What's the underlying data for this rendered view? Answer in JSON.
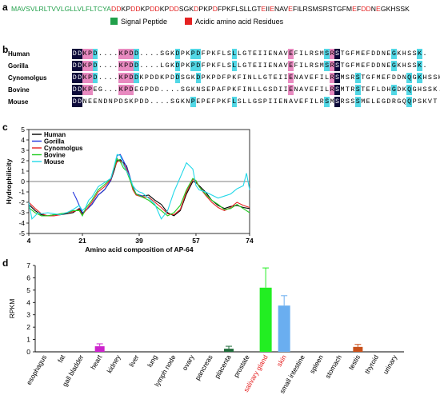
{
  "panels": {
    "a": "a",
    "b": "b",
    "c": "c",
    "d": "d"
  },
  "sequence": {
    "segments": [
      {
        "text": "MAVSVLRLTVVLGLLVLFLTCYA",
        "color": "#21a04a"
      },
      {
        "text": "DD",
        "color": "#e52222"
      },
      {
        "text": "K",
        "color": "#000000"
      },
      {
        "text": "P",
        "color": "#000000"
      },
      {
        "text": "DD",
        "color": "#e52222"
      },
      {
        "text": "KP",
        "color": "#000000"
      },
      {
        "text": "DD",
        "color": "#e52222"
      },
      {
        "text": "KP",
        "color": "#000000"
      },
      {
        "text": "DD",
        "color": "#e52222"
      },
      {
        "text": "SGK",
        "color": "#000000"
      },
      {
        "text": "D",
        "color": "#e52222"
      },
      {
        "text": "PKP",
        "color": "#000000"
      },
      {
        "text": "D",
        "color": "#e52222"
      },
      {
        "text": "FPKFLSLLGT",
        "color": "#000000"
      },
      {
        "text": "E",
        "color": "#e52222"
      },
      {
        "text": "II",
        "color": "#000000"
      },
      {
        "text": "E",
        "color": "#e52222"
      },
      {
        "text": "NAV",
        "color": "#000000"
      },
      {
        "text": "E",
        "color": "#e52222"
      },
      {
        "text": "FILRSMSRSTGFM",
        "color": "#000000"
      },
      {
        "text": "E",
        "color": "#e52222"
      },
      {
        "text": "F",
        "color": "#000000"
      },
      {
        "text": "DD",
        "color": "#e52222"
      },
      {
        "text": "N",
        "color": "#000000"
      },
      {
        "text": "E",
        "color": "#e52222"
      },
      {
        "text": "GKHSSK",
        "color": "#000000"
      }
    ],
    "legend": [
      {
        "label": "Signal Peptide",
        "color": "#21a04a"
      },
      {
        "label": "Acidic amino acid Residues",
        "color": "#e52222"
      }
    ]
  },
  "alignment": [
    {
      "species": "Human",
      "seq": "DDKPD....KPDD....SGKDPKPDFPKFLSLLGTEIIENAVEFILRSMSRSTGFMEFDDNEGKHSSK."
    },
    {
      "species": "Gorilla",
      "seq": "DDKPD....KPDD....LGKDPKPDFPKFLSLLGTEIIENAVEFILRSMSRSTGFMEFDDNEGKHSSK."
    },
    {
      "species": "Cynomolgus",
      "seq": "DDKPD....KPDDKPDDKPDDSGKDPKPDFPKFINLLGTEIIENAVEFILRSMSRSTGFMEFDDNQGKHSSK."
    },
    {
      "species": "Bovine",
      "seq": "DDKPEG...KPDEGPDD....SGKNSEPAFPKFINLLGSDIIENAVEFILRSMTRSTEFLDHGDKQGHSSK."
    },
    {
      "species": "Mouse",
      "seq": "DDNEENDNPDSKPDD....SGKNPEPEFPKFLSLLGSPIIENAVEFILRSMSRSSSMELEGDRGQQPSKVT"
    }
  ],
  "hydro_chart": {
    "type": "line",
    "ylabel": "Hydrophilicity",
    "xlabel": "Amino acid composition of AP-64",
    "xticks": [
      4,
      21,
      39,
      57,
      74
    ],
    "yticks": [
      5,
      4,
      3,
      2,
      1,
      0,
      -1,
      -2,
      -3,
      -4,
      -5
    ],
    "xlim": [
      4,
      74
    ],
    "ylim": [
      -5,
      5
    ],
    "series": [
      {
        "name": "Human",
        "color": "#000000",
        "x": [
          4,
          6,
          8,
          10,
          12,
          14,
          16,
          18,
          20,
          21,
          22,
          24,
          26,
          28,
          30,
          31,
          32,
          33,
          34,
          35,
          36,
          37,
          38,
          40,
          42,
          44,
          46,
          48,
          50,
          52,
          54,
          56,
          57,
          58,
          60,
          62,
          64,
          66,
          68,
          70,
          72,
          74
        ],
        "y": [
          -2.2,
          -2.8,
          -3.2,
          -3.3,
          -3.2,
          -3.2,
          -3.1,
          -3.0,
          -2.6,
          -3.1,
          -2.8,
          -2.2,
          -1.3,
          -0.8,
          0.1,
          1.0,
          2.0,
          2.1,
          1.8,
          1.5,
          0.5,
          -0.6,
          -1.2,
          -1.4,
          -1.3,
          -1.8,
          -2.2,
          -3.0,
          -3.3,
          -2.8,
          -1.2,
          0.0,
          -0.1,
          -0.4,
          -1.0,
          -1.8,
          -2.3,
          -2.6,
          -2.4,
          -2.3,
          -2.5,
          -2.6
        ]
      },
      {
        "name": "Gorilla",
        "color": "#2233dd",
        "x": [
          18,
          19,
          20,
          21,
          22,
          24,
          26,
          28,
          30,
          31,
          32,
          33,
          34,
          35,
          36,
          37,
          38,
          40
        ],
        "y": [
          -1.0,
          -1.6,
          -2.3,
          -3.0,
          -2.8,
          -2.2,
          -1.3,
          -0.8,
          0.1,
          1.2,
          2.5,
          2.6,
          2.0,
          1.4,
          0.5,
          -0.5,
          -1.2,
          -1.4
        ]
      },
      {
        "name": "Cynomolgus",
        "color": "#e52222",
        "x": [
          4,
          6,
          8,
          10,
          12,
          14,
          16,
          18,
          20,
          21,
          22,
          24,
          26,
          28,
          30,
          31,
          32,
          33,
          34,
          35,
          36,
          37,
          38,
          40,
          42,
          44,
          46,
          48,
          50,
          52,
          54,
          56,
          57,
          58,
          60,
          62,
          64,
          66,
          68,
          70,
          72,
          74
        ],
        "y": [
          -2.0,
          -2.6,
          -3.1,
          -3.3,
          -3.3,
          -3.2,
          -3.0,
          -2.9,
          -2.7,
          -3.2,
          -2.8,
          -2.0,
          -1.0,
          -0.5,
          0.2,
          1.2,
          1.9,
          2.0,
          1.7,
          1.2,
          0.3,
          -0.8,
          -1.3,
          -1.5,
          -1.5,
          -2.0,
          -2.5,
          -3.1,
          -3.2,
          -2.7,
          -1.0,
          0.2,
          0.0,
          -0.5,
          -1.3,
          -2.0,
          -2.5,
          -2.8,
          -2.5,
          -2.0,
          -2.3,
          -2.5
        ]
      },
      {
        "name": "Bovine",
        "color": "#22cc22",
        "x": [
          4,
          6,
          8,
          10,
          12,
          14,
          16,
          18,
          20,
          21,
          22,
          24,
          26,
          28,
          30,
          31,
          32,
          33,
          34,
          35,
          36,
          37,
          38,
          40,
          42,
          44,
          46,
          48,
          50,
          52,
          54,
          56,
          57,
          58,
          60,
          62,
          64,
          66,
          68,
          70,
          72,
          74
        ],
        "y": [
          -2.5,
          -3.0,
          -3.3,
          -3.3,
          -3.2,
          -3.1,
          -3.0,
          -2.8,
          -2.8,
          -3.3,
          -2.6,
          -1.8,
          -0.8,
          -0.3,
          0.3,
          1.3,
          2.2,
          1.9,
          1.3,
          1.0,
          0.2,
          -0.6,
          -1.2,
          -1.5,
          -1.8,
          -2.3,
          -2.8,
          -3.3,
          -3.0,
          -2.3,
          -0.8,
          0.3,
          0.1,
          -0.5,
          -1.2,
          -1.8,
          -2.2,
          -2.7,
          -2.6,
          -2.2,
          -2.6,
          -3.0
        ]
      },
      {
        "name": "Mouse",
        "color": "#22d8e8",
        "x": [
          4,
          5,
          6,
          7,
          8,
          10,
          12,
          14,
          16,
          18,
          20,
          21,
          22,
          23,
          24,
          26,
          28,
          30,
          31,
          32,
          33,
          34,
          35,
          36,
          37,
          38,
          39,
          40,
          42,
          44,
          46,
          48,
          50,
          52,
          54,
          56,
          57,
          58,
          60,
          62,
          64,
          66,
          68,
          70,
          72,
          73,
          74
        ],
        "y": [
          -2.0,
          -3.6,
          -3.3,
          -3.0,
          -3.1,
          -3.0,
          -3.1,
          -3.2,
          -3.0,
          -2.7,
          -2.3,
          -2.8,
          -2.5,
          -1.8,
          -1.5,
          -0.5,
          -0.1,
          0.3,
          1.4,
          2.6,
          2.5,
          1.6,
          1.0,
          0.4,
          -0.4,
          -0.8,
          -1.0,
          -1.1,
          -1.6,
          -2.2,
          -3.6,
          -2.8,
          -1.0,
          0.4,
          1.8,
          1.2,
          -0.4,
          -0.8,
          -1.0,
          -1.3,
          -1.6,
          -1.4,
          -1.2,
          -0.7,
          -0.4,
          0.8,
          -0.8
        ]
      }
    ]
  },
  "rpkm_chart": {
    "type": "bar",
    "ylabel": "RPKM",
    "ylim": [
      0,
      7
    ],
    "yticks": [
      0,
      1,
      2,
      3,
      4,
      5,
      6,
      7
    ],
    "categories": [
      "esophagus",
      "fat",
      "gall bladder",
      "heart",
      "kidney",
      "liver",
      "lung",
      "lymph node",
      "ovary",
      "pancreas",
      "placenta",
      "prostate",
      "salivary gland",
      "skin",
      "small intestine",
      "spleen",
      "stomach",
      "testis",
      "thyroid",
      "urinary"
    ],
    "values": [
      0,
      0,
      0,
      0.45,
      0,
      0,
      0,
      0,
      0,
      0,
      0.25,
      0,
      5.2,
      3.75,
      0,
      0,
      0,
      0.4,
      0,
      0
    ],
    "errors": [
      0,
      0,
      0,
      0.2,
      0,
      0,
      0,
      0,
      0,
      0,
      0.2,
      0,
      1.6,
      0.8,
      0,
      0,
      0,
      0.2,
      0,
      0
    ],
    "bar_colors": [
      "#999999",
      "#999999",
      "#999999",
      "#cc22cc",
      "#999999",
      "#999999",
      "#999999",
      "#999999",
      "#999999",
      "#999999",
      "#1f6b3a",
      "#999999",
      "#22ee22",
      "#6aaef0",
      "#999999",
      "#999999",
      "#999999",
      "#c8501a",
      "#999999",
      "#999999"
    ],
    "highlight_labels": [
      "salivary gland",
      "skin"
    ],
    "highlight_color": "#e52222"
  }
}
